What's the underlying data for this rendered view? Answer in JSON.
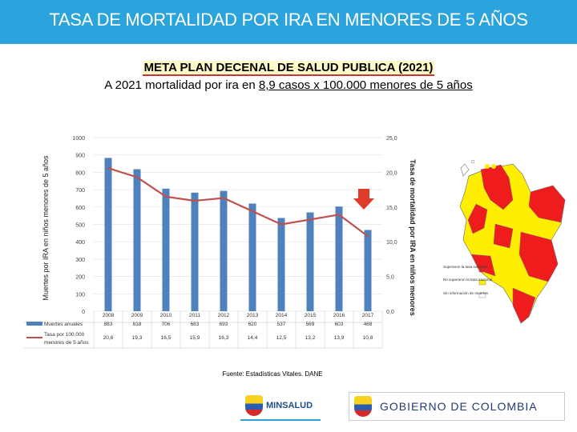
{
  "banner": {
    "title": "TASA DE MORTALIDAD POR IRA EN MENORES DE 5 AÑOS"
  },
  "subtitle": "META PLAN DECENAL DE SALUD PUBLICA (2021)",
  "goal": {
    "text_before": "A 2021 mortalidad por ira en ",
    "text_underlined": "8,9 casos  x 100.000 menores de 5 años"
  },
  "source": "Fuente: Estadísticas Vitales. DANE",
  "colors": {
    "banner": "#2ba3dc",
    "bars": "#4f81bd",
    "line": "#c0504d",
    "arrow": "#e03a2a",
    "map_red": "#ee1c1c",
    "map_yellow": "#ffee00",
    "map_white": "#ffffff"
  },
  "chart_data": {
    "type": "bar",
    "title": "",
    "categories": [
      "2008",
      "2009",
      "2010",
      "2011",
      "2012",
      "2013",
      "2014",
      "2015",
      "2016",
      "2017"
    ],
    "series": [
      {
        "name": "Muertes anuales",
        "axis": "left",
        "kind": "bar",
        "values": [
          883,
          818,
          706,
          683,
          693,
          620,
          537,
          569,
          603,
          468
        ],
        "labels": [
          "883",
          "818",
          "706",
          "683",
          "693",
          "620",
          "537",
          "569",
          "603",
          "468"
        ]
      },
      {
        "name": "Tasa por 100.000 menores de 5 años",
        "axis": "right",
        "kind": "line",
        "values": [
          20.6,
          19.3,
          16.5,
          15.9,
          16.3,
          14.4,
          12.5,
          13.2,
          13.9,
          10.8
        ],
        "labels": [
          "20,6",
          "19,3",
          "16,5",
          "15,9",
          "16,3",
          "14,4",
          "12,5",
          "13,2",
          "13,9",
          "10,8"
        ]
      }
    ],
    "y_left": {
      "label": "Muertes por IRA en niños menores de 5 años",
      "min": 0,
      "max": 1000,
      "ticks": [
        "0",
        "100",
        "200",
        "300",
        "400",
        "500",
        "600",
        "700",
        "800",
        "900",
        "1000"
      ]
    },
    "y_right": {
      "label": "Tasa de mortalidad por IRA en niños menores",
      "min": 0,
      "max": 25,
      "ticks": [
        "0,0",
        "5,0",
        "10,0",
        "15,0",
        "20,0",
        "25,0"
      ]
    },
    "table_row_labels": [
      "Muertes anuales",
      "Tasa por 100.000",
      "menores de 5 años"
    ]
  },
  "map": {
    "legend": [
      {
        "label": "Superaron la tasa nacional",
        "color": "#ee1c1c"
      },
      {
        "label": "No superaron la tasa nacional",
        "color": "#ffee00"
      },
      {
        "label": "Sin información de muertes",
        "color": "#ffffff"
      }
    ]
  },
  "logos": {
    "minsalud": "MINSALUD",
    "gobierno": "GOBIERNO DE COLOMBIA"
  }
}
